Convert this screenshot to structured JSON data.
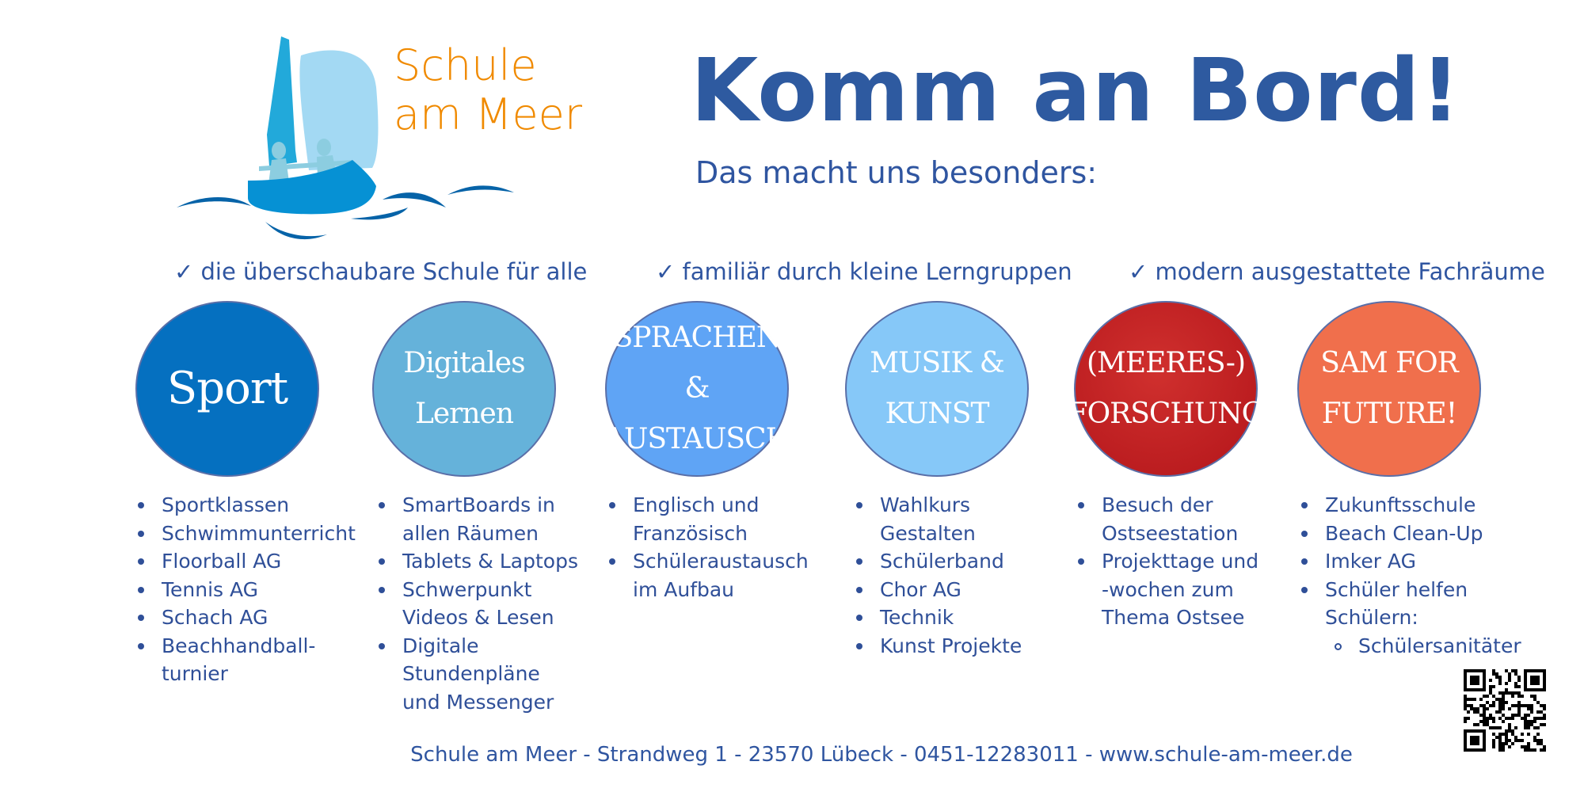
{
  "logo": {
    "line1": "Schule",
    "line2": "am Meer"
  },
  "header": {
    "title": "Komm an Bord!",
    "subtitle": "Das macht uns besonders:"
  },
  "highlights": [
    "✓ die überschaubare Schule für alle",
    "✓ familiär durch kleine Lerngruppen",
    "✓ modern ausgestattete Fachräume"
  ],
  "colors": {
    "text": "#2f4f98",
    "title": "#2e5aa0",
    "logo_orange": "#f08a00"
  },
  "columns": [
    {
      "label": [
        "Sport"
      ],
      "color": "#0570c0",
      "items": [
        "Sportklassen",
        "Schwimmunterricht",
        "Floorball AG",
        "Tennis AG",
        "Schach AG",
        "Beachhandball-\nturnier"
      ]
    },
    {
      "label": [
        "Digitales",
        "Lernen"
      ],
      "color": "#65b2da",
      "items": [
        "SmartBoards in\nallen Räumen",
        "Tablets & Laptops",
        "Schwerpunkt\nVideos & Lesen",
        "Digitale\nStundenpläne\nund Messenger"
      ]
    },
    {
      "label": [
        "SPRACHEN &",
        "AUSTAUSCH"
      ],
      "color": "#5fa4f5",
      "items": [
        "Englisch und\nFranzösisch",
        "Schüleraustausch\nim Aufbau"
      ]
    },
    {
      "label": [
        "MUSIK &",
        "KUNST"
      ],
      "color": "#86c8f8",
      "items": [
        "Wahlkurs\nGestalten",
        "Schülerband",
        "Chor AG",
        "Technik",
        "Kunst Projekte"
      ]
    },
    {
      "label": [
        "(MEERES-)",
        "FORSCHUNG"
      ],
      "color": "#c0201f",
      "items": [
        "Besuch der\nOstseestation",
        "Projekttage und\n-wochen zum\nThema Ostsee"
      ]
    },
    {
      "label": [
        "SAM FOR",
        "FUTURE!"
      ],
      "color": "#f06f4c",
      "items": [
        "Zukunftsschule",
        "Beach Clean-Up",
        "Imker AG",
        "Schüler helfen\nSchülern:"
      ],
      "subitems": [
        "Schülersanitäter"
      ]
    }
  ],
  "footer": "Schule am Meer - Strandweg 1 - 23570 Lübeck - 0451-12283011 - www.schule-am-meer.de"
}
